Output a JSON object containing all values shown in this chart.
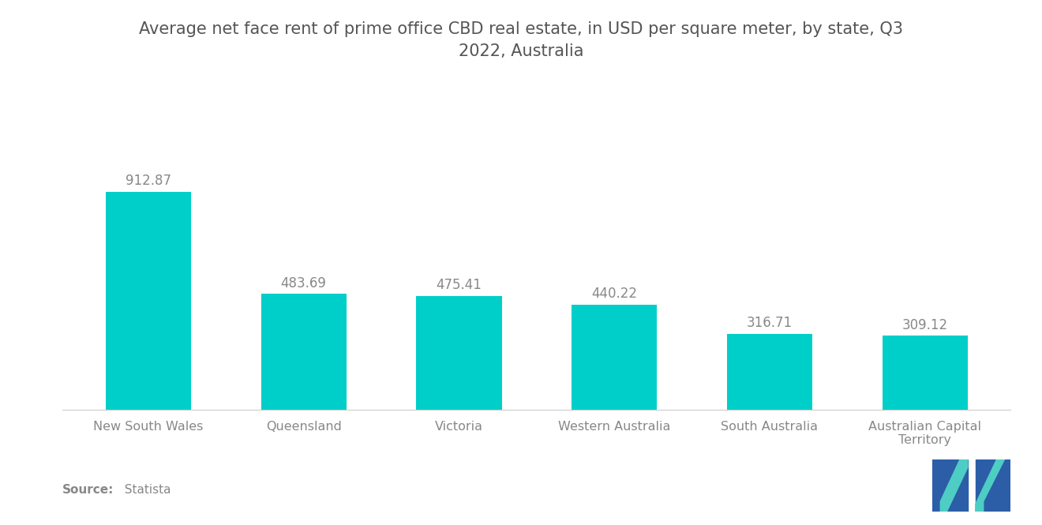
{
  "title": "Average net face rent of prime office CBD real estate, in USD per square meter, by state, Q3\n2022, Australia",
  "categories": [
    "New South Wales",
    "Queensland",
    "Victoria",
    "Western Australia",
    "South Australia",
    "Australian Capital\nTerritory"
  ],
  "values": [
    912.87,
    483.69,
    475.41,
    440.22,
    316.71,
    309.12
  ],
  "bar_color": "#00CEC9",
  "label_color": "#888888",
  "title_color": "#555555",
  "background_color": "#ffffff",
  "source_bold": "Source:",
  "source_normal": "  Statista",
  "title_fontsize": 15,
  "label_fontsize": 12,
  "tick_fontsize": 11.5,
  "source_fontsize": 11,
  "ylim": [
    0,
    1100
  ],
  "logo_dark": "#2b5ea7",
  "logo_teal": "#4ecdc4"
}
